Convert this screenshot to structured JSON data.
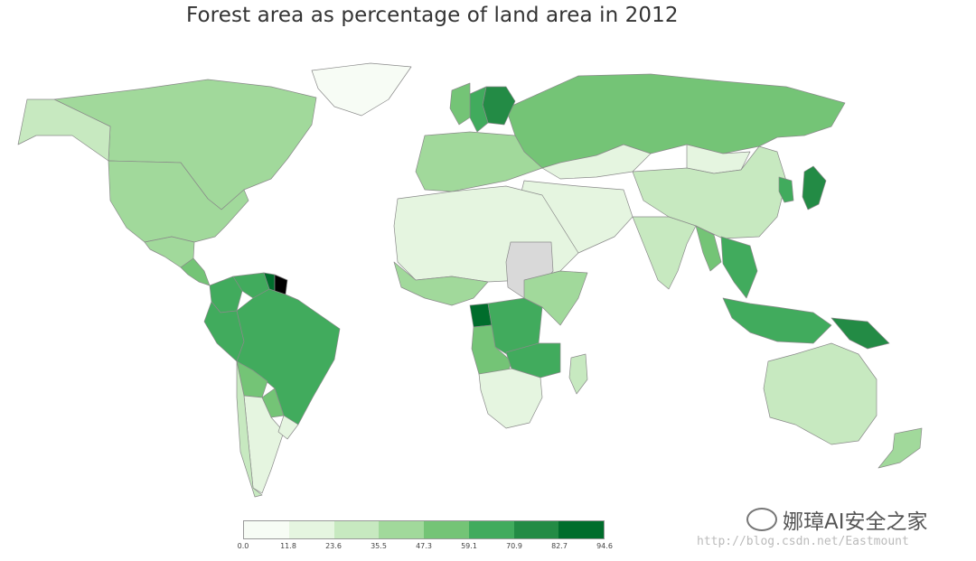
{
  "title": "Forest area as percentage of land area in 2012",
  "chart_data": {
    "type": "choropleth",
    "title": "Forest area as percentage of land area in 2012",
    "metric": "Forest area (% of land area)",
    "year": 2012,
    "scale": {
      "ticks": [
        "0.0",
        "11.8",
        "23.6",
        "35.5",
        "47.3",
        "59.1",
        "70.9",
        "82.7",
        "94.6"
      ],
      "colors": [
        "#f7fcf5",
        "#e5f5e0",
        "#c7e9c0",
        "#a1d99b",
        "#74c476",
        "#41ab5d",
        "#238b45",
        "#006d2c"
      ],
      "no_data_color": "#d9d9d9"
    },
    "regions": [
      {
        "name": "Canada",
        "bin": 3
      },
      {
        "name": "United States",
        "bin": 3
      },
      {
        "name": "Alaska",
        "bin": 2
      },
      {
        "name": "Greenland",
        "bin": 0
      },
      {
        "name": "Mexico",
        "bin": 3
      },
      {
        "name": "Central America",
        "bin": 4
      },
      {
        "name": "Colombia",
        "bin": 5
      },
      {
        "name": "Venezuela",
        "bin": 5
      },
      {
        "name": "Guyana",
        "bin": 7
      },
      {
        "name": "Suriname",
        "bin": 8
      },
      {
        "name": "Peru",
        "bin": 5
      },
      {
        "name": "Brazil",
        "bin": 5
      },
      {
        "name": "Bolivia",
        "bin": 4
      },
      {
        "name": "Paraguay",
        "bin": 4
      },
      {
        "name": "Argentina",
        "bin": 1
      },
      {
        "name": "Chile",
        "bin": 2
      },
      {
        "name": "Uruguay",
        "bin": 1
      },
      {
        "name": "Russia",
        "bin": 4
      },
      {
        "name": "Finland",
        "bin": 6
      },
      {
        "name": "Sweden",
        "bin": 5
      },
      {
        "name": "Norway",
        "bin": 4
      },
      {
        "name": "Europe",
        "bin": 3
      },
      {
        "name": "Kazakhstan",
        "bin": 1
      },
      {
        "name": "Mongolia",
        "bin": 1
      },
      {
        "name": "China",
        "bin": 2
      },
      {
        "name": "Japan",
        "bin": 6
      },
      {
        "name": "Korea",
        "bin": 5
      },
      {
        "name": "Middle East",
        "bin": 1
      },
      {
        "name": "India",
        "bin": 2
      },
      {
        "name": "Myanmar",
        "bin": 4
      },
      {
        "name": "Southeast Asia",
        "bin": 5
      },
      {
        "name": "Indonesia",
        "bin": 5
      },
      {
        "name": "Papua New Guinea",
        "bin": 6
      },
      {
        "name": "Australia",
        "bin": 2
      },
      {
        "name": "New Zealand",
        "bin": 3
      },
      {
        "name": "North Africa",
        "bin": 1
      },
      {
        "name": "Sudan",
        "bin": -1
      },
      {
        "name": "West Africa",
        "bin": 3
      },
      {
        "name": "Gabon",
        "bin": 7
      },
      {
        "name": "DR Congo",
        "bin": 5
      },
      {
        "name": "Angola",
        "bin": 4
      },
      {
        "name": "East Africa",
        "bin": 3
      },
      {
        "name": "Zambia",
        "bin": 5
      },
      {
        "name": "Southern Africa",
        "bin": 1
      },
      {
        "name": "Madagascar",
        "bin": 2
      }
    ]
  },
  "watermark": "娜璋AI安全之家",
  "url": "http://blog.csdn.net/Eastmount"
}
